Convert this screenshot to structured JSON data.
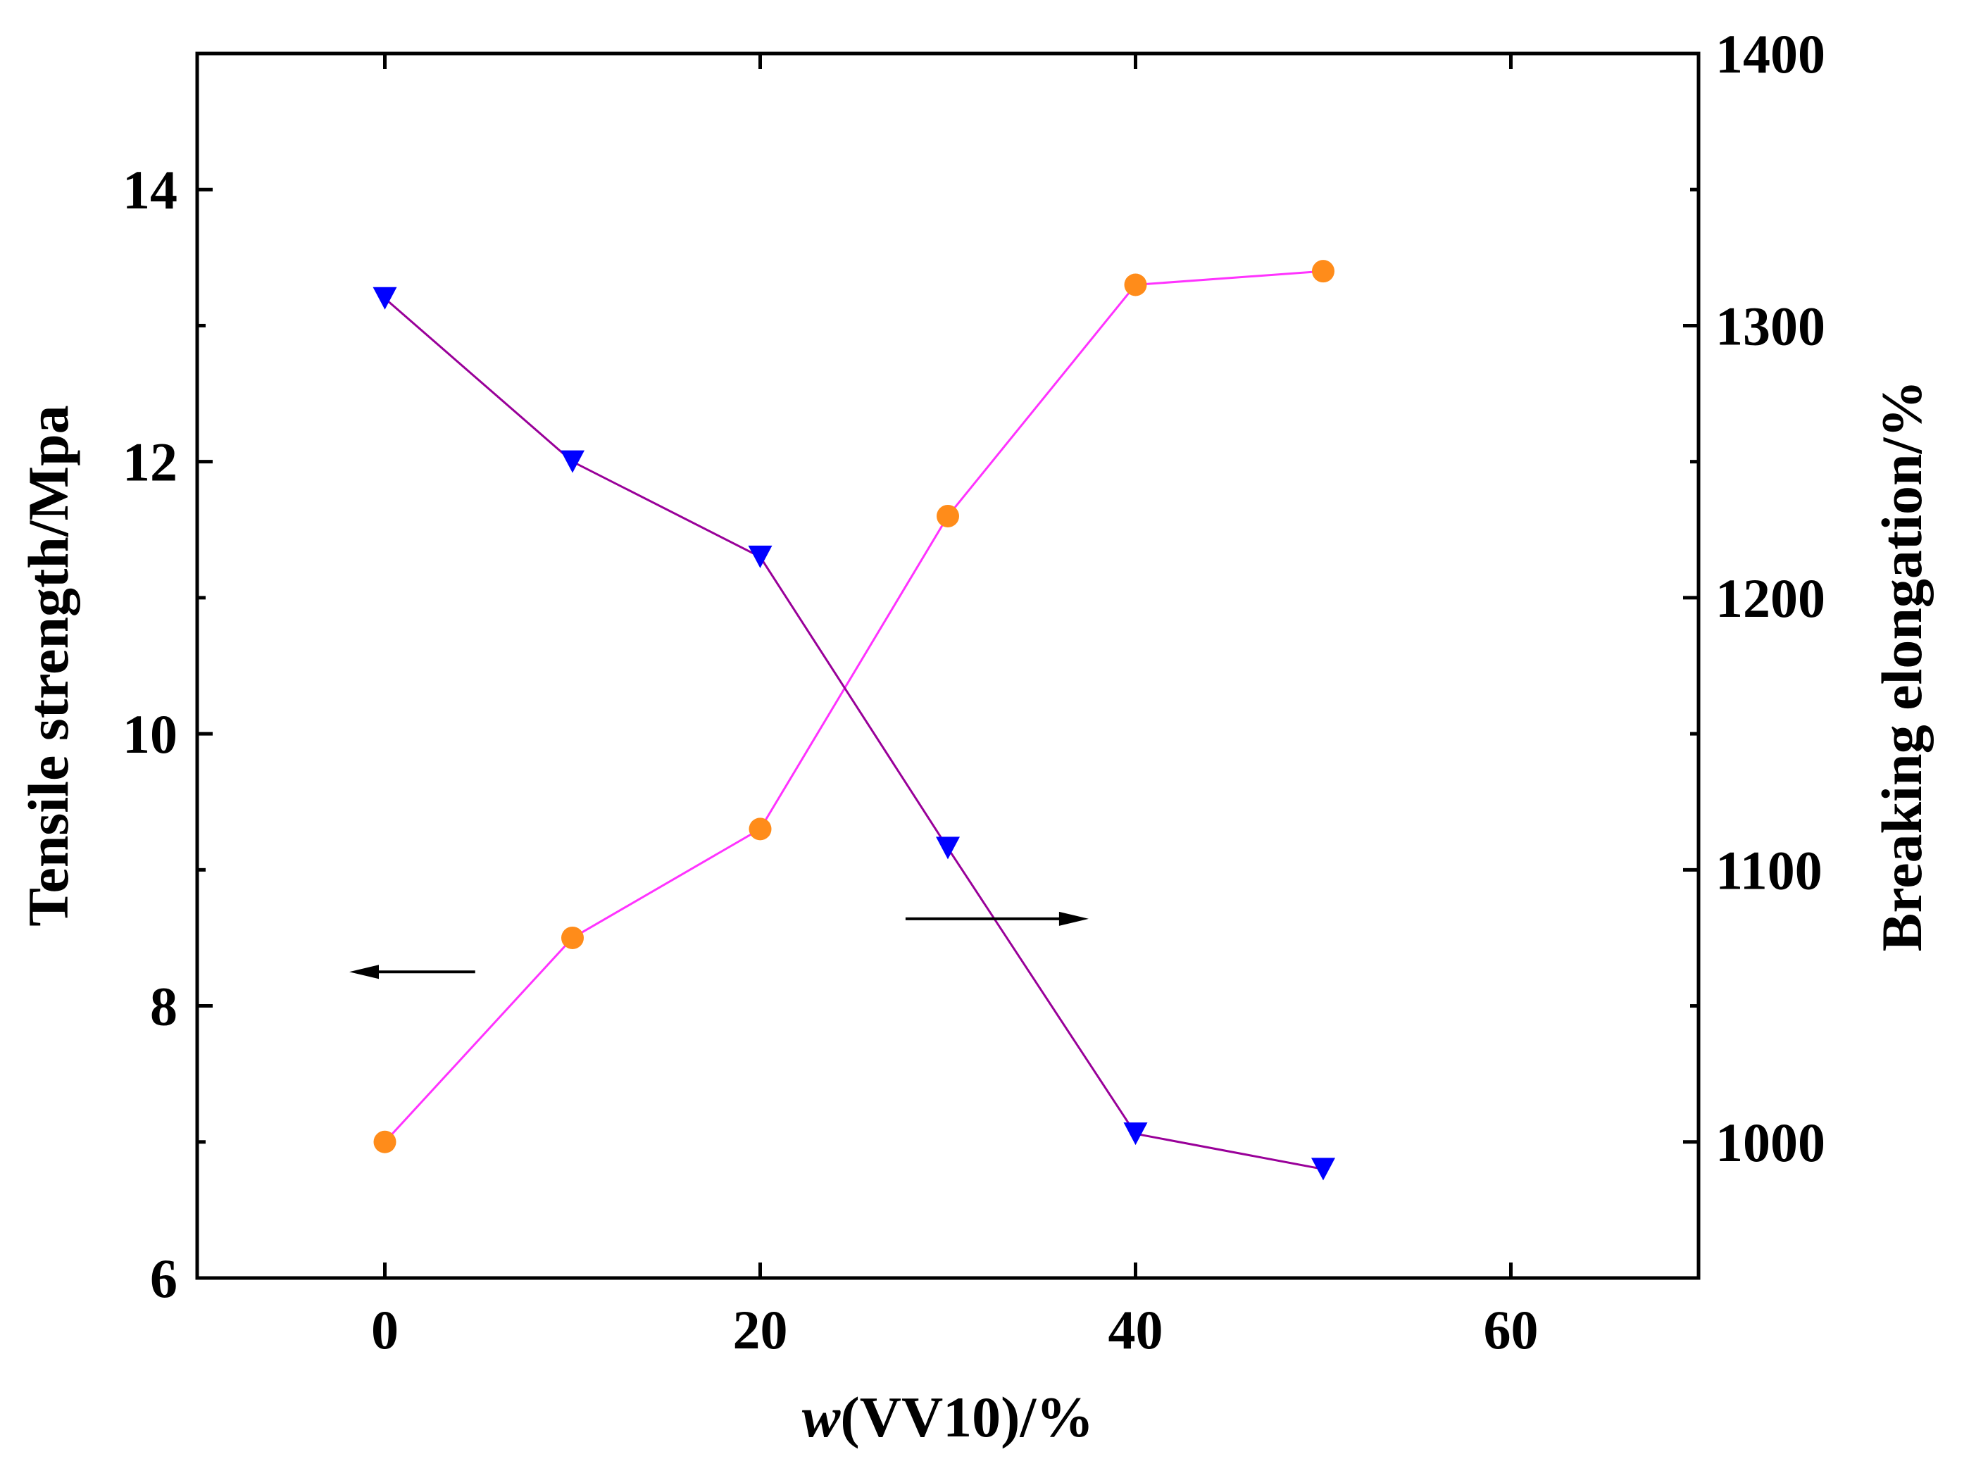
{
  "chart_data": {
    "type": "line",
    "title": "",
    "xlabel_italic": "w",
    "xlabel_rest": "(VV10)/%",
    "ylabel_left": "Tensile strength/Mpa",
    "ylabel_right": "Breaking elongation/%",
    "xlim": [
      -10,
      70
    ],
    "ylim_left": [
      6,
      15
    ],
    "ylim_right": [
      950,
      1400
    ],
    "x_ticks": [
      0,
      20,
      40,
      60
    ],
    "x_tick_labels": [
      "0",
      "20",
      "40",
      "60"
    ],
    "y_left_ticks": [
      6,
      8,
      10,
      12,
      14
    ],
    "y_left_tick_labels": [
      "6",
      "8",
      "10",
      "12",
      "14"
    ],
    "y_right_ticks": [
      1000,
      1100,
      1200,
      1300,
      1400
    ],
    "y_right_tick_labels": [
      "1000",
      "1100",
      "1200",
      "1300",
      "1400"
    ],
    "grid": false,
    "series": [
      {
        "name": "Tensile strength",
        "axis": "left",
        "marker": "circle",
        "marker_color": "#ff8c1a",
        "line_color": "#ff33ff",
        "x": [
          0,
          10,
          20,
          30,
          40,
          50
        ],
        "values": [
          7.0,
          8.5,
          9.3,
          11.6,
          13.3,
          13.4
        ]
      },
      {
        "name": "Breaking elongation",
        "axis": "right",
        "marker": "triangle-down",
        "marker_color": "#0000ff",
        "line_color": "#990099",
        "x": [
          0,
          10,
          20,
          30,
          40,
          50
        ],
        "values": [
          1310,
          1250,
          1215,
          1108,
          1003,
          990
        ]
      }
    ],
    "annotations": [
      {
        "type": "arrow",
        "direction": "left",
        "points_to_axis": "left",
        "near_x": 5,
        "at_y_left": 8.25
      },
      {
        "type": "arrow",
        "direction": "right",
        "points_to_axis": "right",
        "near_x": 36,
        "at_y_right": 1082
      }
    ]
  }
}
